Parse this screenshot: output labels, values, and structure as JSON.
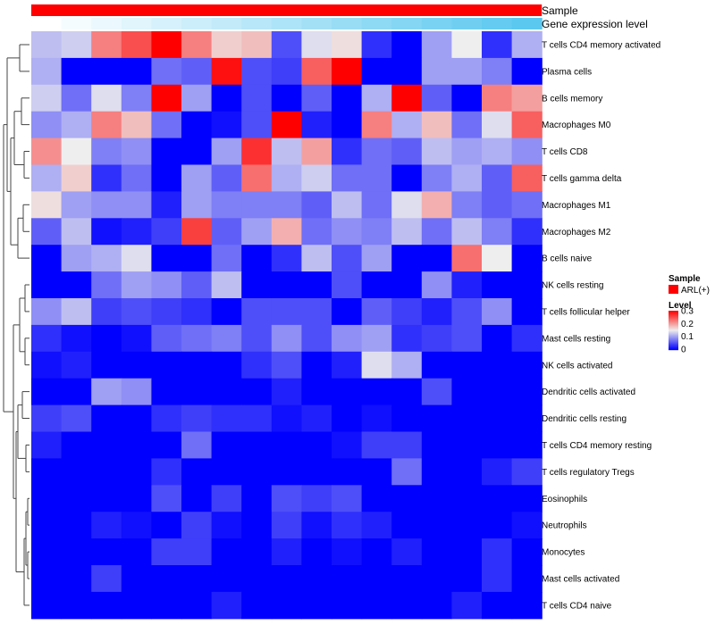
{
  "chart_data": {
    "type": "heatmap",
    "columns": 17,
    "rows": [
      "T cells CD4 memory activated",
      "Plasma cells",
      "B cells memory",
      "Macrophages M0",
      "T cells CD8",
      "T cells gamma delta",
      "Macrophages M1",
      "Macrophages M2",
      "B cells naive",
      "NK cells resting",
      "T cells follicular helper",
      "Mast cells resting",
      "NK cells activated",
      "Dendritic cells activated",
      "Dendritic cells resting",
      "T cells CD4 memory resting",
      "T cells regulatory  Tregs",
      "Eosinophils",
      "Neutrophils",
      "Monocytes",
      "Mast cells activated",
      "T cells CD4 naive"
    ],
    "values": [
      [
        0.12,
        0.13,
        0.22,
        0.25,
        0.3,
        0.22,
        0.17,
        0.18,
        0.05,
        0.14,
        0.16,
        0.03,
        0.0,
        0.1,
        0.15,
        0.03,
        0.11
      ],
      [
        0.11,
        0.0,
        0.0,
        0.0,
        0.07,
        0.06,
        0.29,
        0.05,
        0.04,
        0.24,
        0.3,
        0.0,
        0.0,
        0.1,
        0.1,
        0.08,
        0.0
      ],
      [
        0.13,
        0.07,
        0.14,
        0.08,
        0.3,
        0.1,
        0.0,
        0.05,
        0.0,
        0.06,
        0.0,
        0.11,
        0.3,
        0.06,
        0.0,
        0.22,
        0.2
      ],
      [
        0.09,
        0.11,
        0.22,
        0.18,
        0.07,
        0.0,
        0.01,
        0.05,
        0.3,
        0.02,
        0.0,
        0.22,
        0.11,
        0.18,
        0.07,
        0.14,
        0.24
      ],
      [
        0.21,
        0.15,
        0.08,
        0.09,
        0.0,
        0.0,
        0.1,
        0.27,
        0.12,
        0.2,
        0.03,
        0.07,
        0.06,
        0.12,
        0.1,
        0.11,
        0.09
      ],
      [
        0.11,
        0.17,
        0.03,
        0.07,
        0.0,
        0.1,
        0.06,
        0.23,
        0.11,
        0.13,
        0.07,
        0.07,
        0.0,
        0.08,
        0.11,
        0.06,
        0.24
      ],
      [
        0.16,
        0.1,
        0.09,
        0.09,
        0.02,
        0.1,
        0.08,
        0.08,
        0.08,
        0.06,
        0.12,
        0.07,
        0.14,
        0.19,
        0.08,
        0.06,
        0.07
      ],
      [
        0.06,
        0.12,
        0.01,
        0.02,
        0.04,
        0.26,
        0.06,
        0.1,
        0.19,
        0.07,
        0.09,
        0.08,
        0.12,
        0.07,
        0.12,
        0.08,
        0.03
      ],
      [
        0.0,
        0.1,
        0.11,
        0.14,
        0.0,
        0.0,
        0.07,
        0.0,
        0.03,
        0.12,
        0.05,
        0.1,
        0.0,
        0.0,
        0.23,
        0.15,
        0.0
      ],
      [
        0.0,
        0.0,
        0.07,
        0.1,
        0.09,
        0.06,
        0.12,
        0.0,
        0.0,
        0.0,
        0.05,
        0.0,
        0.0,
        0.09,
        0.02,
        0.0,
        0.0
      ],
      [
        0.09,
        0.12,
        0.04,
        0.05,
        0.04,
        0.03,
        0.0,
        0.05,
        0.05,
        0.05,
        0.0,
        0.06,
        0.04,
        0.02,
        0.05,
        0.09,
        0.0
      ],
      [
        0.03,
        0.01,
        0.0,
        0.01,
        0.06,
        0.07,
        0.08,
        0.05,
        0.09,
        0.05,
        0.09,
        0.1,
        0.03,
        0.04,
        0.05,
        0.0,
        0.03
      ],
      [
        0.01,
        0.02,
        0.0,
        0.0,
        0.0,
        0.0,
        0.0,
        0.03,
        0.05,
        0.0,
        0.02,
        0.14,
        0.11,
        0.0,
        0.0,
        0.0,
        0.0
      ],
      [
        0.0,
        0.0,
        0.1,
        0.09,
        0.0,
        0.0,
        0.0,
        0.0,
        0.02,
        0.0,
        0.0,
        0.0,
        0.0,
        0.05,
        0.0,
        0.0,
        0.0
      ],
      [
        0.04,
        0.05,
        0.0,
        0.0,
        0.03,
        0.04,
        0.03,
        0.03,
        0.01,
        0.02,
        0.0,
        0.01,
        0.0,
        0.0,
        0.0,
        0.0,
        0.0
      ],
      [
        0.02,
        0.0,
        0.0,
        0.0,
        0.0,
        0.07,
        0.0,
        0.0,
        0.0,
        0.0,
        0.01,
        0.04,
        0.04,
        0.0,
        0.0,
        0.0,
        0.0
      ],
      [
        0.0,
        0.0,
        0.0,
        0.0,
        0.03,
        0.0,
        0.0,
        0.0,
        0.0,
        0.0,
        0.0,
        0.0,
        0.07,
        0.0,
        0.0,
        0.02,
        0.04
      ],
      [
        0.0,
        0.0,
        0.0,
        0.0,
        0.05,
        0.0,
        0.04,
        0.0,
        0.05,
        0.04,
        0.05,
        0.0,
        0.0,
        0.0,
        0.0,
        0.0,
        0.0
      ],
      [
        0.0,
        0.0,
        0.02,
        0.01,
        0.0,
        0.04,
        0.01,
        0.0,
        0.04,
        0.01,
        0.03,
        0.02,
        0.0,
        0.0,
        0.0,
        0.0,
        0.01
      ],
      [
        0.0,
        0.0,
        0.0,
        0.0,
        0.04,
        0.04,
        0.0,
        0.0,
        0.02,
        0.0,
        0.01,
        0.0,
        0.02,
        0.0,
        0.0,
        0.03,
        0.0
      ],
      [
        0.0,
        0.0,
        0.04,
        0.0,
        0.0,
        0.0,
        0.0,
        0.0,
        0.0,
        0.0,
        0.0,
        0.0,
        0.0,
        0.0,
        0.0,
        0.03,
        0.0
      ],
      [
        0.0,
        0.0,
        0.0,
        0.0,
        0.0,
        0.0,
        0.02,
        0.0,
        0.0,
        0.0,
        0.0,
        0.0,
        0.0,
        0.0,
        0.02,
        0.0,
        0.0
      ]
    ],
    "color_scale": {
      "domain": [
        0,
        0.15,
        0.3
      ],
      "colors": [
        "#0000ff",
        "#eeeeee",
        "#ff0000"
      ]
    },
    "annotations": [
      {
        "name": "Sample",
        "kind": "categorical",
        "values_color": "#ff0000"
      },
      {
        "name": "Gene expression level",
        "kind": "gradient",
        "from_color": "#ffffff",
        "to_color": "#5bc8ef"
      }
    ],
    "legends": {
      "sample": {
        "title": "Sample",
        "entries": [
          {
            "label": "ARL(+)",
            "color": "#ff0000"
          }
        ]
      },
      "level": {
        "title": "Level",
        "ticks": [
          0.3,
          0.2,
          0.1,
          0
        ]
      }
    }
  }
}
